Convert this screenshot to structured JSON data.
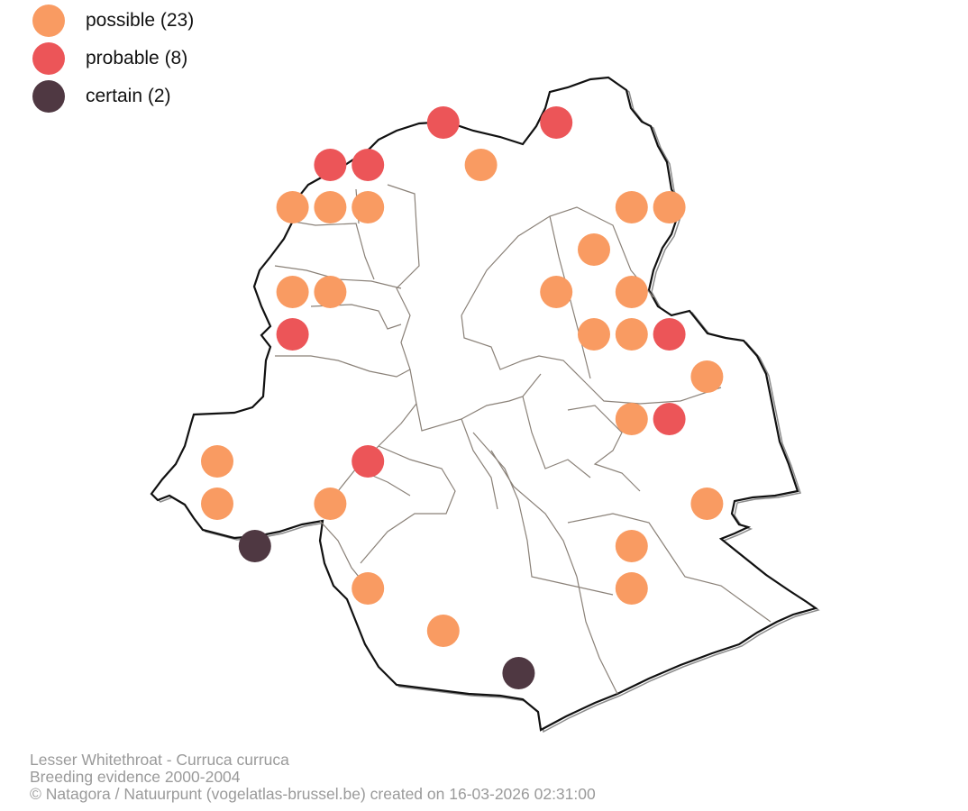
{
  "legend": [
    {
      "key": "possible",
      "label": "possible (23)",
      "color": "#F99B62"
    },
    {
      "key": "probable",
      "label": "probable (8)",
      "color": "#EC5558"
    },
    {
      "key": "certain",
      "label": "certain (2)",
      "color": "#4F3842"
    }
  ],
  "credits": {
    "line1": "Lesser Whitethroat - Curruca curruca",
    "line2": "Breeding evidence 2000-2004",
    "line3": "© Natagora / Natuurpunt (vogelatlas-brussel.be) created on 16-03-2026 02:31:00"
  },
  "colors": {
    "outline": "#111111",
    "outline_shadow": "#8c8c8c",
    "municipal_borders": "#8a8178"
  },
  "observations": [
    {
      "status": "probable",
      "col": 11,
      "row": 1
    },
    {
      "status": "probable",
      "col": 14,
      "row": 1
    },
    {
      "status": "probable",
      "col": 8,
      "row": 2
    },
    {
      "status": "probable",
      "col": 9,
      "row": 2
    },
    {
      "status": "possible",
      "col": 12,
      "row": 2
    },
    {
      "status": "possible",
      "col": 7,
      "row": 3
    },
    {
      "status": "possible",
      "col": 8,
      "row": 3
    },
    {
      "status": "possible",
      "col": 9,
      "row": 3
    },
    {
      "status": "possible",
      "col": 16,
      "row": 3
    },
    {
      "status": "possible",
      "col": 17,
      "row": 3
    },
    {
      "status": "possible",
      "col": 15,
      "row": 4
    },
    {
      "status": "possible",
      "col": 7,
      "row": 5
    },
    {
      "status": "possible",
      "col": 8,
      "row": 5
    },
    {
      "status": "possible",
      "col": 14,
      "row": 5
    },
    {
      "status": "possible",
      "col": 16,
      "row": 5
    },
    {
      "status": "probable",
      "col": 7,
      "row": 6
    },
    {
      "status": "possible",
      "col": 15,
      "row": 6
    },
    {
      "status": "possible",
      "col": 16,
      "row": 6
    },
    {
      "status": "probable",
      "col": 17,
      "row": 6
    },
    {
      "status": "possible",
      "col": 18,
      "row": 7
    },
    {
      "status": "possible",
      "col": 16,
      "row": 8
    },
    {
      "status": "probable",
      "col": 17,
      "row": 8
    },
    {
      "status": "possible",
      "col": 5,
      "row": 9
    },
    {
      "status": "probable",
      "col": 9,
      "row": 9
    },
    {
      "status": "possible",
      "col": 5,
      "row": 10
    },
    {
      "status": "possible",
      "col": 8,
      "row": 10
    },
    {
      "status": "possible",
      "col": 18,
      "row": 10
    },
    {
      "status": "certain",
      "col": 6,
      "row": 11
    },
    {
      "status": "possible",
      "col": 16,
      "row": 11
    },
    {
      "status": "possible",
      "col": 9,
      "row": 12
    },
    {
      "status": "possible",
      "col": 16,
      "row": 12
    },
    {
      "status": "possible",
      "col": 11,
      "row": 13
    },
    {
      "status": "certain",
      "col": 13,
      "row": 14
    }
  ]
}
